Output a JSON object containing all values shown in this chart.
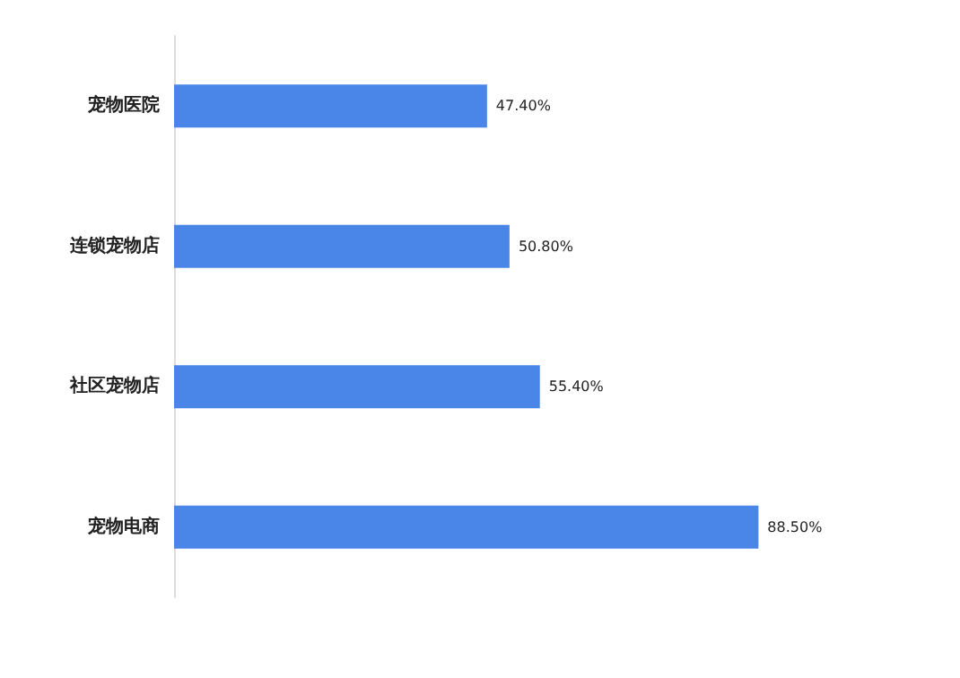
{
  "chart_data": {
    "type": "bar",
    "orientation": "horizontal",
    "categories": [
      "宠物医院",
      "连锁宠物店",
      "社区宠物店",
      "宠物电商"
    ],
    "values": [
      47.4,
      50.8,
      55.4,
      88.5
    ],
    "color": "#4a86e8",
    "value_labels": [
      "47.40%",
      "50.80%",
      "55.40%",
      "88.50%"
    ]
  }
}
